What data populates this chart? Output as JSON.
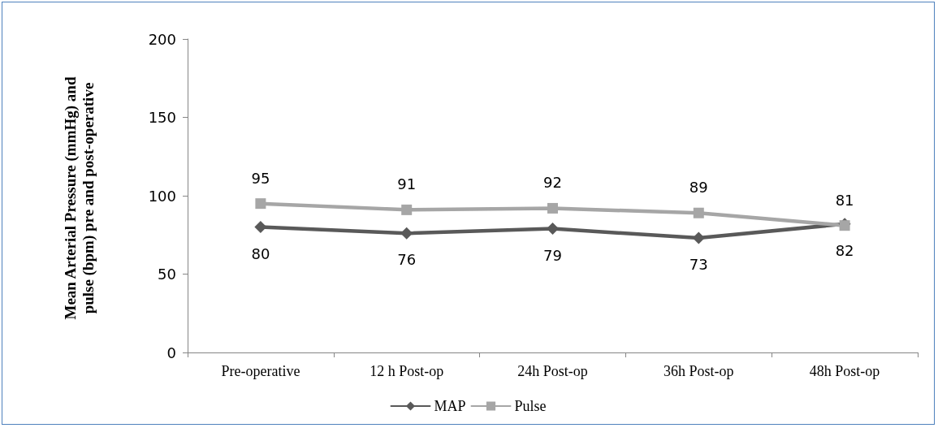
{
  "chart_data": {
    "type": "line",
    "ylabel": "Mean Arterial Pressure (mmHg) and pulse (bpm) pre and post-operative",
    "categories": [
      "Pre-operative",
      "12 h Post-op",
      "24h Post-op",
      "36h Post-op",
      "48h Post-op"
    ],
    "series": [
      {
        "name": "MAP",
        "color": "#595959",
        "marker": "diamond",
        "values": [
          80,
          76,
          79,
          73,
          82
        ]
      },
      {
        "name": "Pulse",
        "color": "#a6a6a6",
        "marker": "square",
        "values": [
          95,
          91,
          92,
          89,
          81
        ]
      }
    ],
    "ylim": [
      0,
      200
    ],
    "yticks": [
      0,
      50,
      100,
      150,
      200
    ],
    "grid": false,
    "legend": "bottom",
    "data_labels": true,
    "line_style": "solid"
  }
}
